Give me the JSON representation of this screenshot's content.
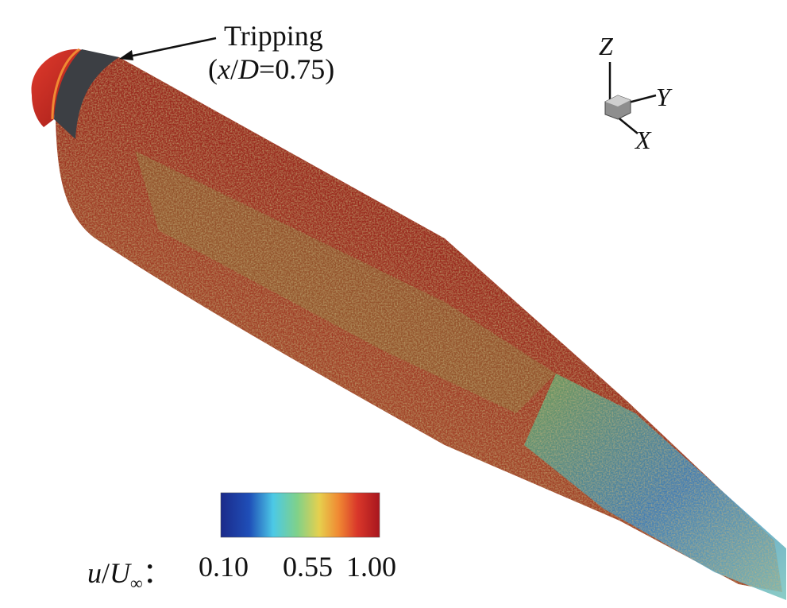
{
  "annotation": {
    "label_line1": "Tripping",
    "label_line2_prefix": "(",
    "label_line2_x": "x",
    "label_line2_slash": "/",
    "label_line2_D": "D",
    "label_line2_suffix": "=0.75)"
  },
  "axes_triad": {
    "z": "Z",
    "y": "Y",
    "x": "X"
  },
  "colorbar": {
    "variable_u": "u",
    "variable_slash": "/",
    "variable_U": "U",
    "variable_sub": "∞",
    "separator": "：",
    "tick_low": "0.10",
    "tick_mid": "0.55",
    "tick_high": "1.00",
    "colors": [
      "#1b2a8a",
      "#1f4fb8",
      "#2a8fd8",
      "#4cc9e6",
      "#7fd18a",
      "#c7d65a",
      "#f2c14a",
      "#f08a33",
      "#d9372a",
      "#a8161e"
    ]
  },
  "body_colors": {
    "nose": "#c92a24",
    "nose_band": "#f08a33",
    "sleeve": "#3c3f44",
    "shell_dark": "#7a1c1a",
    "shell_mid": "#b33a24"
  }
}
